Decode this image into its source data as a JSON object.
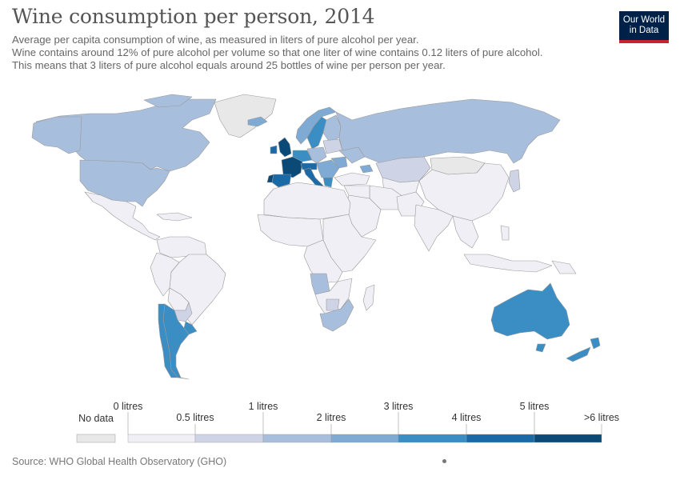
{
  "header": {
    "title": "Wine consumption per person, 2014",
    "subtitle_lines": [
      "Average per capita consumption of wine, as measured in liters of pure alcohol per year.",
      "Wine contains around 12% of pure alcohol per volume so that one liter of wine contains 0.12 liters of pure alcohol.",
      "This means that 3 liters of pure alcohol equals around 25 bottles of wine per person per year."
    ]
  },
  "logo": {
    "line1": "Our World",
    "line2": "in Data"
  },
  "colors": {
    "no_data": "#e8e8e8",
    "bin_0": "#efeff5",
    "bin_1": "#cfd3e6",
    "bin_2": "#a8bedd",
    "bin_3": "#7eaad3",
    "bin_4": "#3b8ec4",
    "bin_5": "#1a6aa8",
    "bin_6": "#0b4a76",
    "border": "#9a9a9a"
  },
  "legend": {
    "no_data_label": "No data",
    "upper_labels": [
      "0 litres",
      "1 litres",
      "3 litres",
      "5 litres"
    ],
    "lower_labels": [
      "0.5 litres",
      "2 litres",
      "4 litres",
      ">6 litres"
    ]
  },
  "footer": {
    "source": "Source: WHO Global Health Observatory (GHO)"
  }
}
